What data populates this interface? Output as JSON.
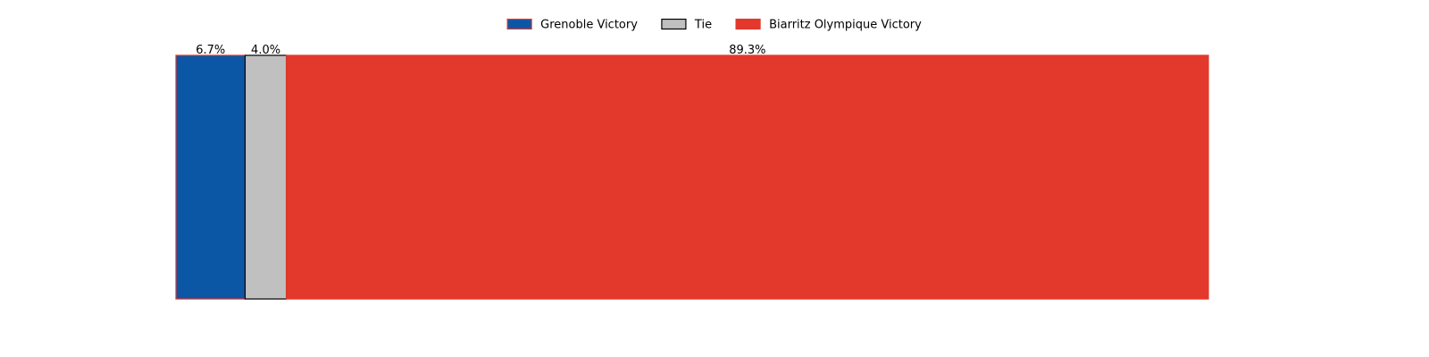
{
  "chart_data": {
    "type": "bar",
    "orientation": "horizontal-stacked",
    "unit": "%",
    "xlim": [
      0,
      100
    ],
    "legend_position": "top-center",
    "grid": false,
    "series": [
      {
        "name": "Grenoble Victory",
        "value": 6.7,
        "label": "6.7%",
        "color": "#0b57a6",
        "edge": "#e3392c"
      },
      {
        "name": "Tie",
        "value": 4.0,
        "label": "4.0%",
        "color": "#c0c0c0",
        "edge": "#000000"
      },
      {
        "name": "Biarritz Olympique Victory",
        "value": 89.3,
        "label": "89.3%",
        "color": "#e3382c",
        "edge": "#e3382c"
      }
    ]
  }
}
